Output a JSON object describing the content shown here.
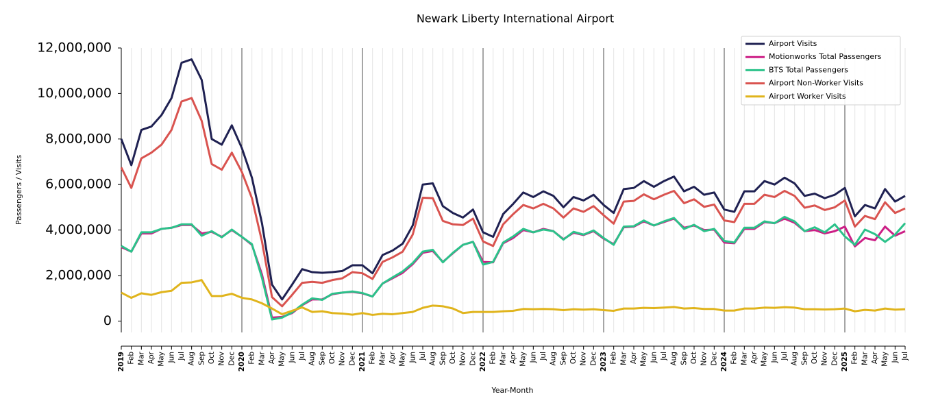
{
  "chart_data": {
    "type": "line",
    "title": "Newark Liberty International Airport",
    "x_label": "Year-Month",
    "y_label": "Passengers / Visits",
    "categories": [
      "2019",
      "Feb",
      "Mar",
      "Apr",
      "May",
      "Jun",
      "Jul",
      "Aug",
      "Sep",
      "Oct",
      "Nov",
      "Dec",
      "2020",
      "Feb",
      "Mar",
      "Apr",
      "May",
      "Jun",
      "Jul",
      "Aug",
      "Sep",
      "Oct",
      "Nov",
      "Dec",
      "2021",
      "Feb",
      "Mar",
      "Apr",
      "May",
      "Jun",
      "Jul",
      "Aug",
      "Sep",
      "Oct",
      "Nov",
      "Dec",
      "2022",
      "Feb",
      "Mar",
      "Apr",
      "May",
      "Jun",
      "Jul",
      "Aug",
      "Sep",
      "Oct",
      "Nov",
      "Dec",
      "2023",
      "Feb",
      "Mar",
      "Apr",
      "May",
      "Jun",
      "Jul",
      "Aug",
      "Sep",
      "Oct",
      "Nov",
      "Dec",
      "2024",
      "Feb",
      "Mar",
      "Apr",
      "May",
      "Jun",
      "Jul",
      "Aug",
      "Sep",
      "Oct",
      "Nov",
      "Dec",
      "2025",
      "Feb",
      "Mar",
      "Apr",
      "May",
      "Jun",
      "Jul"
    ],
    "ylim": [
      -500000,
      12000000
    ],
    "yticks": [
      0,
      {
        "value": 2000000,
        "label": "2,000,000"
      },
      {
        "value": 4000000,
        "label": "4,000,000"
      },
      {
        "value": 6000000,
        "label": "6,000,000"
      },
      {
        "value": 8000000,
        "label": "8,000,000"
      },
      {
        "value": 10000000,
        "label": "10,000,000"
      },
      {
        "value": 12000000,
        "label": "12,000,000"
      }
    ],
    "grid": true,
    "legend": "upper right",
    "series": [
      {
        "name": "Airport Visits",
        "color": "#1f2152",
        "values": [
          8000000,
          6850000,
          8400000,
          8550000,
          9050000,
          9800000,
          11350000,
          11500000,
          10600000,
          8000000,
          7750000,
          8600000,
          7600000,
          6300000,
          4300000,
          1600000,
          950000,
          1600000,
          2280000,
          2150000,
          2120000,
          2150000,
          2200000,
          2450000,
          2450000,
          2100000,
          2900000,
          3100000,
          3400000,
          4200000,
          6000000,
          6050000,
          5050000,
          4750000,
          4550000,
          4900000,
          3900000,
          3700000,
          4700000,
          5150000,
          5650000,
          5450000,
          5700000,
          5500000,
          5000000,
          5450000,
          5300000,
          5550000,
          5100000,
          4750000,
          5800000,
          5850000,
          6150000,
          5900000,
          6150000,
          6350000,
          5700000,
          5900000,
          5550000,
          5650000,
          4900000,
          4800000,
          5700000,
          5700000,
          6150000,
          6000000,
          6300000,
          6050000,
          5500000,
          5600000,
          5400000,
          5550000,
          5850000,
          4600000,
          5100000,
          4950000,
          5800000,
          5250000,
          5500000
        ]
      },
      {
        "name": "Motionworks Total Passengers",
        "color": "#cc1f86",
        "values": [
          3250000,
          3050000,
          3850000,
          3850000,
          4050000,
          4100000,
          4220000,
          4220000,
          3850000,
          3920000,
          3700000,
          4000000,
          3700000,
          3350000,
          2050000,
          150000,
          180000,
          350000,
          700000,
          950000,
          950000,
          1180000,
          1250000,
          1280000,
          1220000,
          1080000,
          1650000,
          1880000,
          2120000,
          2500000,
          3000000,
          3080000,
          2600000,
          2980000,
          3350000,
          3480000,
          2600000,
          2580000,
          3420000,
          3650000,
          4000000,
          3900000,
          4050000,
          3950000,
          3600000,
          3880000,
          3780000,
          3950000,
          3620000,
          3380000,
          4120000,
          4150000,
          4380000,
          4200000,
          4350000,
          4500000,
          4100000,
          4200000,
          4000000,
          4020000,
          3450000,
          3420000,
          4050000,
          4050000,
          4350000,
          4300000,
          4500000,
          4320000,
          3950000,
          4000000,
          3850000,
          3950000,
          4150000,
          3280000,
          3650000,
          3550000,
          4150000,
          3750000,
          3950000
        ]
      },
      {
        "name": "BTS Total Passengers",
        "color": "#2bc28a",
        "values": [
          3300000,
          3050000,
          3900000,
          3900000,
          4050000,
          4100000,
          4250000,
          4250000,
          3750000,
          3950000,
          3680000,
          4020000,
          3700000,
          3380000,
          1900000,
          70000,
          150000,
          380000,
          720000,
          1000000,
          930000,
          1200000,
          1250000,
          1300000,
          1230000,
          1080000,
          1650000,
          1920000,
          2180000,
          2550000,
          3050000,
          3130000,
          2580000,
          3000000,
          3350000,
          3480000,
          2480000,
          2600000,
          3450000,
          3720000,
          4050000,
          3900000,
          4020000,
          3950000,
          3580000,
          3920000,
          3800000,
          3980000,
          3650000,
          3350000,
          4150000,
          4170000,
          4420000,
          4200000,
          4380000,
          4530000,
          4050000,
          4230000,
          3950000,
          4050000,
          3520000,
          3450000,
          4100000,
          4100000,
          4380000,
          4300000,
          4580000,
          4380000,
          3950000,
          4120000,
          3900000,
          4250000,
          3720000,
          3350000,
          4020000,
          3820000,
          3480000,
          3800000,
          4300000
        ]
      },
      {
        "name": "Airport Non-Worker Visits",
        "color": "#d9534f",
        "values": [
          6750000,
          5850000,
          7150000,
          7400000,
          7750000,
          8400000,
          9650000,
          9800000,
          8800000,
          6900000,
          6650000,
          7400000,
          6550000,
          5400000,
          3500000,
          1050000,
          650000,
          1150000,
          1680000,
          1720000,
          1680000,
          1800000,
          1880000,
          2150000,
          2100000,
          1850000,
          2600000,
          2800000,
          3050000,
          3800000,
          5420000,
          5400000,
          4400000,
          4250000,
          4220000,
          4500000,
          3500000,
          3300000,
          4250000,
          4700000,
          5100000,
          4950000,
          5150000,
          4950000,
          4550000,
          4950000,
          4800000,
          5050000,
          4650000,
          4280000,
          5250000,
          5280000,
          5570000,
          5350000,
          5550000,
          5720000,
          5180000,
          5350000,
          5020000,
          5120000,
          4420000,
          4350000,
          5150000,
          5150000,
          5550000,
          5450000,
          5720000,
          5500000,
          4980000,
          5080000,
          4880000,
          5000000,
          5300000,
          4150000,
          4620000,
          4480000,
          5220000,
          4750000,
          4950000
        ]
      },
      {
        "name": "Airport Worker Visits",
        "color": "#e0b41c",
        "values": [
          1250000,
          1020000,
          1220000,
          1150000,
          1270000,
          1330000,
          1680000,
          1700000,
          1800000,
          1100000,
          1100000,
          1200000,
          1020000,
          950000,
          780000,
          550000,
          300000,
          450000,
          600000,
          400000,
          430000,
          350000,
          330000,
          280000,
          350000,
          270000,
          320000,
          300000,
          350000,
          400000,
          580000,
          680000,
          650000,
          550000,
          350000,
          400000,
          400000,
          400000,
          430000,
          450000,
          530000,
          520000,
          530000,
          520000,
          480000,
          520000,
          500000,
          520000,
          480000,
          450000,
          550000,
          550000,
          580000,
          570000,
          590000,
          620000,
          550000,
          570000,
          530000,
          530000,
          460000,
          460000,
          550000,
          550000,
          590000,
          580000,
          610000,
          590000,
          520000,
          520000,
          510000,
          520000,
          550000,
          430000,
          490000,
          460000,
          550000,
          500000,
          520000
        ]
      }
    ]
  }
}
